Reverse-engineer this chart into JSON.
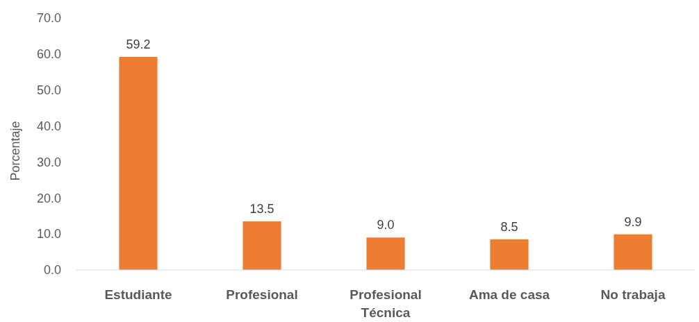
{
  "chart_data": {
    "type": "bar",
    "ylabel": "Porcentaje",
    "categories": [
      "Estudiante",
      "Profesional",
      "Profesional Técnica",
      "Ama de casa",
      "No trabaja"
    ],
    "values": [
      59.2,
      13.5,
      9.0,
      8.5,
      9.9
    ],
    "value_labels": [
      "59.2",
      "13.5",
      "9.0",
      "8.5",
      "9.9"
    ],
    "color": "#ed7d31",
    "ylim": [
      0,
      70
    ],
    "yticks": [
      {
        "value": 0,
        "label": "0.0"
      },
      {
        "value": 10,
        "label": "10.0"
      },
      {
        "value": 20,
        "label": "20.0"
      },
      {
        "value": 30,
        "label": "30.0"
      },
      {
        "value": 40,
        "label": "40.0"
      },
      {
        "value": 50,
        "label": "50.0"
      },
      {
        "value": 60,
        "label": "60.0"
      },
      {
        "value": 70,
        "label": "70.0"
      }
    ],
    "grid": false
  }
}
